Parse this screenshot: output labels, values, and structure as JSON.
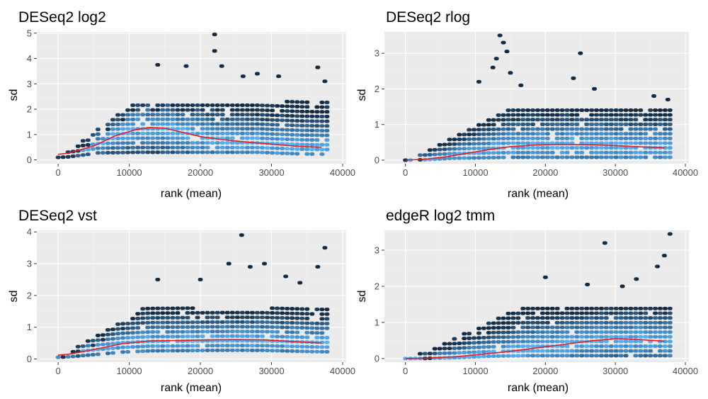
{
  "colors": {
    "panel_bg": "#ebebeb",
    "grid_major": "#ffffff",
    "grid_minor": "#f4f4f4",
    "hex_low": "#132b43",
    "hex_high": "#56b1f7",
    "trend_line": "#e41a1c"
  },
  "chart_data": [
    {
      "type": "hexbin",
      "title": "DESeq2 log2",
      "xlabel": "rank (mean)",
      "ylabel": "sd",
      "xlim": [
        -3000,
        40500
      ],
      "ylim": [
        -0.15,
        5.05
      ],
      "xticks": [
        0,
        10000,
        20000,
        30000,
        40000
      ],
      "yticks": [
        0,
        1,
        2,
        3,
        4,
        5
      ],
      "grid": true,
      "data_x_max": 38000,
      "density": {
        "rise_end": 11000,
        "plateau_lower": 0.25,
        "plateau_upper": 2.3
      },
      "trend": {
        "x": [
          0,
          1500,
          5000,
          8000,
          11000,
          13000,
          15000,
          17000,
          20000,
          23000,
          26000,
          30000,
          34000,
          37000
        ],
        "y": [
          0.22,
          0.27,
          0.55,
          0.95,
          1.2,
          1.28,
          1.25,
          1.12,
          0.92,
          0.8,
          0.72,
          0.62,
          0.53,
          0.5
        ]
      },
      "outliers": [
        [
          22000,
          4.95
        ],
        [
          22000,
          4.3
        ],
        [
          14000,
          3.75
        ],
        [
          18000,
          3.7
        ],
        [
          23000,
          3.7
        ],
        [
          26000,
          3.3
        ],
        [
          28000,
          3.4
        ],
        [
          31000,
          3.3
        ],
        [
          36500,
          3.65
        ],
        [
          37500,
          3.1
        ]
      ]
    },
    {
      "type": "hexbin",
      "title": "DESeq2 rlog",
      "xlabel": "rank (mean)",
      "ylabel": "sd",
      "xlim": [
        -3000,
        40500
      ],
      "ylim": [
        -0.1,
        3.6
      ],
      "xticks": [
        0,
        10000,
        20000,
        30000,
        40000
      ],
      "yticks": [
        0,
        1,
        2,
        3
      ],
      "grid": true,
      "data_x_max": 38000,
      "density": {
        "rise_end": 15000,
        "plateau_lower": 0.03,
        "plateau_upper": 1.5
      },
      "trend": {
        "x": [
          0,
          3000,
          6000,
          9000,
          12000,
          15000,
          18000,
          21000,
          24000,
          27000,
          30000,
          33000,
          37000
        ],
        "y": [
          0.0,
          0.03,
          0.1,
          0.2,
          0.3,
          0.38,
          0.42,
          0.44,
          0.44,
          0.43,
          0.41,
          0.38,
          0.35
        ]
      },
      "outliers": [
        [
          13500,
          3.5
        ],
        [
          14000,
          3.3
        ],
        [
          14500,
          3.05
        ],
        [
          13000,
          2.85
        ],
        [
          12500,
          2.6
        ],
        [
          15000,
          2.45
        ],
        [
          10500,
          2.2
        ],
        [
          16500,
          2.1
        ],
        [
          25000,
          3.0
        ],
        [
          24000,
          2.3
        ],
        [
          27000,
          2.0
        ],
        [
          35500,
          1.8
        ],
        [
          37500,
          1.7
        ]
      ]
    },
    {
      "type": "hexbin",
      "title": "DESeq2 vst",
      "xlabel": "rank (mean)",
      "ylabel": "sd",
      "xlim": [
        -3000,
        40500
      ],
      "ylim": [
        -0.1,
        4.05
      ],
      "xticks": [
        0,
        10000,
        20000,
        30000,
        40000
      ],
      "yticks": [
        0,
        1,
        2,
        3,
        4
      ],
      "grid": true,
      "data_x_max": 38000,
      "density": {
        "rise_end": 12000,
        "plateau_lower": 0.25,
        "plateau_upper": 1.6
      },
      "trend": {
        "x": [
          0,
          1500,
          5000,
          9000,
          13000,
          17000,
          21000,
          25000,
          29000,
          33000,
          37000
        ],
        "y": [
          0.12,
          0.15,
          0.3,
          0.48,
          0.57,
          0.58,
          0.6,
          0.61,
          0.6,
          0.55,
          0.5
        ]
      },
      "outliers": [
        [
          25800,
          3.9
        ],
        [
          37500,
          3.5
        ],
        [
          24000,
          3.0
        ],
        [
          27000,
          2.9
        ],
        [
          29000,
          3.0
        ],
        [
          36500,
          2.9
        ],
        [
          14000,
          2.5
        ],
        [
          20000,
          2.5
        ],
        [
          32000,
          2.6
        ],
        [
          34000,
          2.4
        ]
      ]
    },
    {
      "type": "hexbin",
      "title": "edgeR log2 tmm",
      "xlabel": "rank (mean)",
      "ylabel": "sd",
      "xlim": [
        -3000,
        40500
      ],
      "ylim": [
        -0.1,
        3.55
      ],
      "xticks": [
        0,
        10000,
        20000,
        30000,
        40000
      ],
      "yticks": [
        0,
        1,
        2,
        3
      ],
      "grid": true,
      "data_x_max": 38000,
      "density": {
        "rise_end": 17000,
        "plateau_lower": 0.03,
        "plateau_upper": 1.45
      },
      "trend": {
        "x": [
          0,
          3000,
          7000,
          11000,
          15000,
          19000,
          23000,
          27000,
          30000,
          33000,
          37000
        ],
        "y": [
          0.0,
          0.01,
          0.05,
          0.12,
          0.2,
          0.3,
          0.4,
          0.5,
          0.55,
          0.53,
          0.48
        ]
      },
      "outliers": [
        [
          37800,
          3.45
        ],
        [
          28500,
          3.2
        ],
        [
          37000,
          2.85
        ],
        [
          36000,
          2.55
        ],
        [
          20000,
          2.25
        ],
        [
          33000,
          2.2
        ],
        [
          26000,
          2.05
        ],
        [
          31000,
          2.0
        ]
      ]
    }
  ]
}
